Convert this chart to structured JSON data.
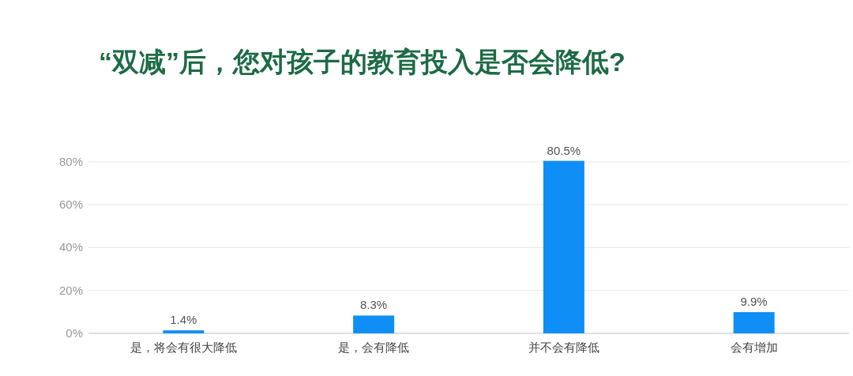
{
  "chart_data": {
    "type": "bar",
    "title": "“双减”后，您对孩子的教育投入是否会降低?",
    "categories": [
      "是，将会有很大降低",
      "是，会有降低",
      "并不会有降低",
      "会有增加"
    ],
    "values": [
      1.4,
      8.3,
      80.5,
      9.9
    ],
    "color": "#0f8ff5",
    "value_labels": [
      "1.4%",
      "8.3%",
      "80.5%",
      "9.9%"
    ],
    "ylim": [
      0,
      80.5
    ],
    "yticks": [
      {
        "value": 0,
        "label": "0%"
      },
      {
        "value": 20,
        "label": "20%"
      },
      {
        "value": 40,
        "label": "40%"
      },
      {
        "value": 60,
        "label": "60%"
      },
      {
        "value": 80,
        "label": "80%"
      }
    ],
    "grid": "y"
  }
}
